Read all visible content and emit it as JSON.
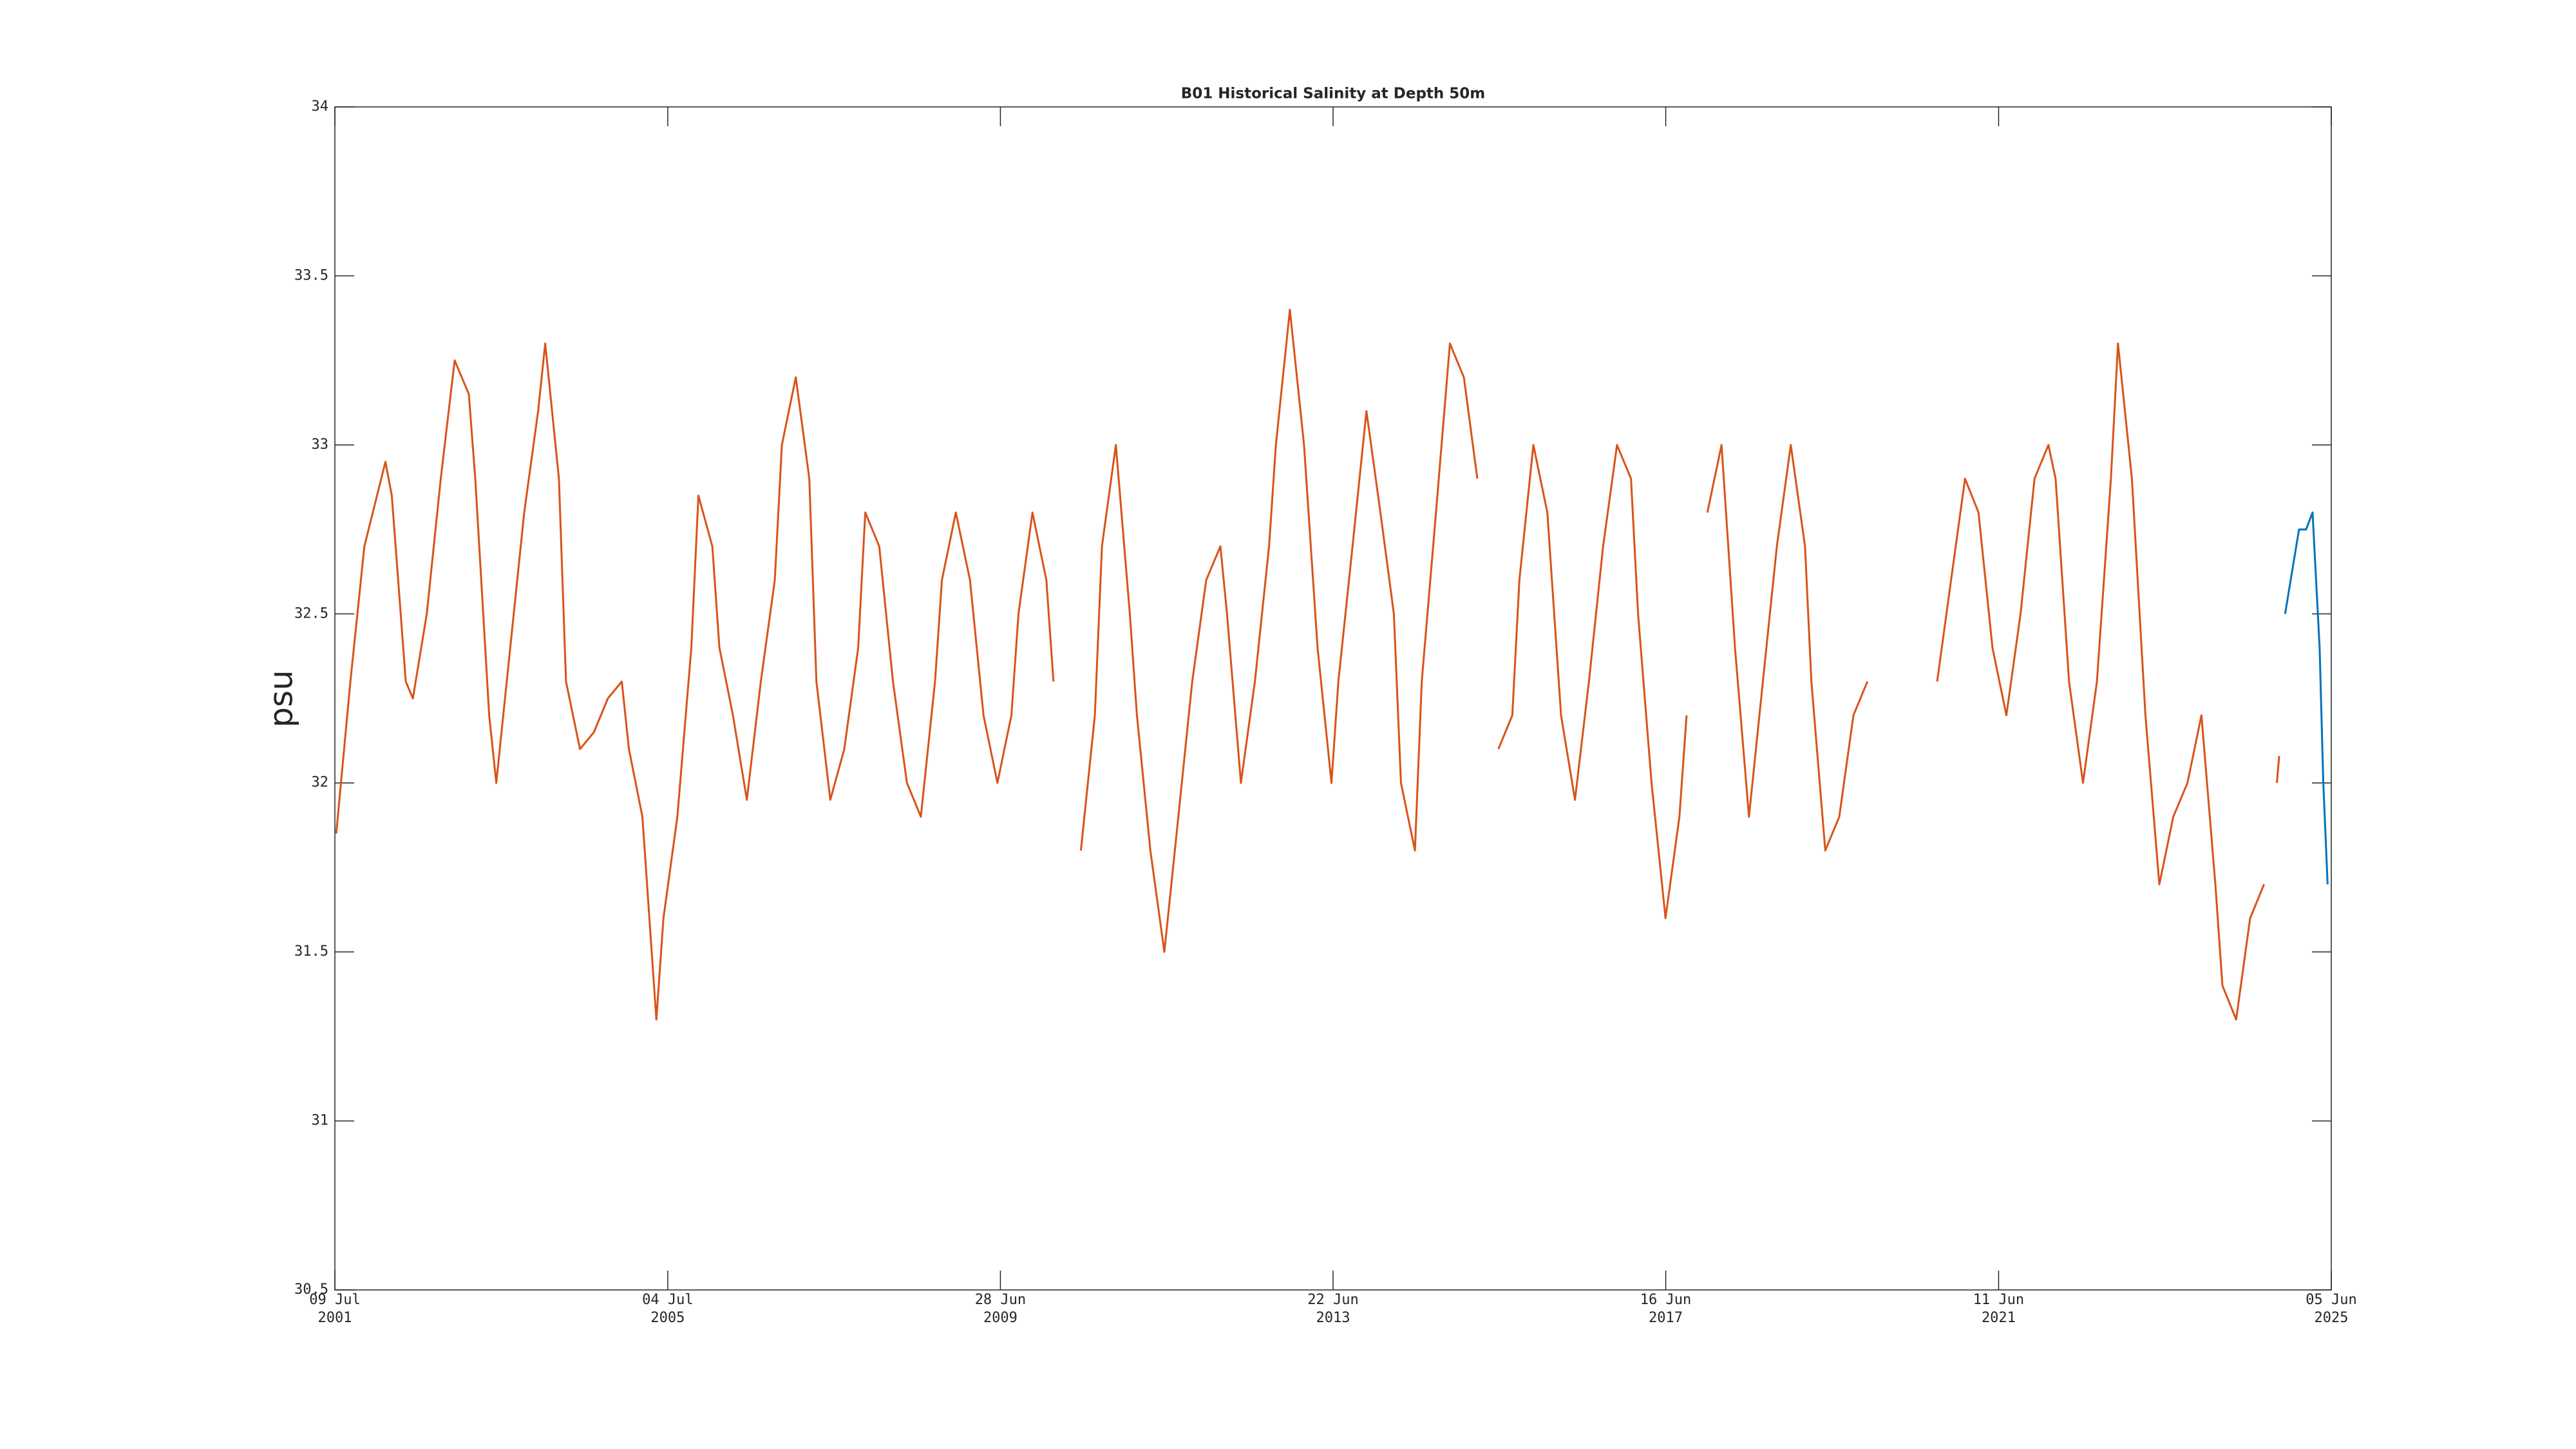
{
  "chart_data": {
    "type": "line",
    "title": "B01 Historical Salinity at Depth 50m",
    "y_label": "psu",
    "xlim": [
      "2001-07-09",
      "2025-06-05"
    ],
    "xticks": [
      {
        "value": "2001-07-09",
        "label": "09 Jul\n2001"
      },
      {
        "value": "2005-07-04",
        "label": "04 Jul\n2005"
      },
      {
        "value": "2009-06-28",
        "label": "28 Jun\n2009"
      },
      {
        "value": "2013-06-22",
        "label": "22 Jun\n2013"
      },
      {
        "value": "2017-06-16",
        "label": "16 Jun\n2017"
      },
      {
        "value": "2021-06-11",
        "label": "11 Jun\n2021"
      },
      {
        "value": "2025-06-05",
        "label": "05 Jun\n2025"
      }
    ],
    "ylim": [
      30.5,
      34
    ],
    "yticks": [
      30.5,
      31,
      31.5,
      32,
      32.5,
      33,
      33.5,
      34
    ],
    "grid": false,
    "series": [
      {
        "color": "#d95319",
        "x": [
          "2001-07-15",
          "2001-09-15",
          "2001-11-15",
          "2002-02-15",
          "2002-03-15",
          "2002-05-15",
          "2002-06-15",
          "2002-08-15",
          "2002-10-15",
          "2002-12-15",
          "2003-02-15",
          "2003-03-15",
          "2003-05-15",
          "2003-06-15",
          "2003-08-15",
          "2003-10-15",
          "2003-12-15",
          "2004-01-15",
          "2004-03-15",
          "2004-04-15",
          "2004-06-15",
          "2004-08-15",
          "2004-10-15",
          "2004-12-15",
          "2005-01-15",
          "2005-03-15",
          "2005-05-15",
          "2005-06-15",
          "2005-08-15",
          "2005-10-15",
          "2005-11-15",
          "2006-01-15",
          "2006-02-15",
          "2006-04-15",
          "2006-06-15",
          "2006-08-15",
          "2006-10-15",
          "2006-11-15",
          "2007-01-15",
          "2007-03-15",
          "2007-04-15",
          "2007-06-15",
          "2007-08-15",
          "2007-10-15",
          "2007-11-15",
          "2008-01-15",
          "2008-03-15",
          "2008-05-15",
          "2008-07-15",
          "2008-09-15",
          "2008-10-15",
          "2008-12-15",
          "2009-02-15",
          "2009-04-15",
          "2009-06-15",
          "2009-08-15",
          "2009-09-15",
          "2009-11-15",
          "2010-01-15",
          "2010-02-15",
          "2010-04-15",
          "2010-06-15",
          "2010-08-15",
          "2010-09-15",
          "2010-11-15",
          "2011-01-15",
          "2011-02-15",
          "2011-04-15",
          "2011-06-15",
          "2011-08-15",
          "2011-10-15",
          "2011-12-15",
          "2012-02-15",
          "2012-03-15",
          "2012-05-15",
          "2012-07-15",
          "2012-09-15",
          "2012-10-15",
          "2012-12-15",
          "2013-02-15",
          "2013-04-15",
          "2013-06-15",
          "2013-07-15",
          "2013-09-15",
          "2013-11-15",
          "2014-01-15",
          "2014-03-15",
          "2014-04-15",
          "2014-06-15",
          "2014-07-15",
          "2014-09-15",
          "2014-11-15",
          "2015-01-15",
          "2015-03-15",
          "2015-04-15",
          "2015-06-15",
          "2015-08-15",
          "2015-09-15",
          "2015-11-15",
          "2016-01-15",
          "2016-03-15",
          "2016-05-15",
          "2016-07-15",
          "2016-09-15",
          "2016-11-15",
          "2017-01-15",
          "2017-02-15",
          "2017-04-15",
          "2017-06-15",
          "2017-08-15",
          "2017-09-15",
          "2017-11-01",
          "2017-12-15",
          "2018-02-15",
          "2018-04-15",
          "2018-06-15",
          "2018-08-15",
          "2018-10-15",
          "2018-12-15",
          "2019-02-15",
          "2019-03-15",
          "2019-05-15",
          "2019-07-15",
          "2019-09-15",
          "2019-11-15",
          "2020-03-15",
          "2020-09-15",
          "2020-11-15",
          "2021-01-15",
          "2021-03-15",
          "2021-05-15",
          "2021-07-15",
          "2021-09-15",
          "2021-11-15",
          "2022-01-15",
          "2022-02-15",
          "2022-04-15",
          "2022-06-15",
          "2022-08-15",
          "2022-10-15",
          "2022-11-15",
          "2023-01-15",
          "2023-03-15",
          "2023-05-15",
          "2023-07-15",
          "2023-09-15",
          "2023-11-15",
          "2024-01-15",
          "2024-02-15",
          "2024-04-15",
          "2024-06-15",
          "2024-08-15",
          "2024-09-15",
          "2024-10-10",
          "2024-10-20"
        ],
        "values": [
          31.85,
          32.3,
          32.7,
          32.95,
          32.85,
          32.3,
          32.25,
          32.5,
          32.9,
          33.25,
          33.15,
          32.9,
          32.2,
          32.0,
          32.4,
          32.8,
          33.1,
          33.3,
          32.9,
          32.3,
          32.1,
          32.15,
          32.25,
          32.3,
          32.1,
          31.9,
          31.3,
          31.6,
          31.9,
          32.4,
          32.85,
          32.7,
          32.4,
          32.2,
          31.95,
          32.3,
          32.6,
          33.0,
          33.2,
          32.9,
          32.3,
          31.95,
          32.1,
          32.4,
          32.8,
          32.7,
          32.3,
          32.0,
          31.9,
          32.3,
          32.6,
          32.8,
          32.6,
          32.2,
          32.0,
          32.2,
          32.5,
          32.8,
          32.6,
          32.3,
          null,
          31.8,
          32.2,
          32.7,
          33.0,
          32.5,
          32.2,
          31.8,
          31.5,
          31.9,
          32.3,
          32.6,
          32.7,
          32.5,
          32.0,
          32.3,
          32.7,
          33.0,
          33.4,
          33.0,
          32.4,
          32.0,
          32.3,
          32.7,
          33.1,
          32.8,
          32.5,
          32.0,
          31.8,
          32.3,
          32.8,
          33.3,
          33.2,
          32.9,
          null,
          32.1,
          32.2,
          32.6,
          33.0,
          32.8,
          32.2,
          31.95,
          32.3,
          32.7,
          33.0,
          32.9,
          32.5,
          32.0,
          31.6,
          31.9,
          32.2,
          null,
          32.8,
          33.0,
          32.4,
          31.9,
          32.3,
          32.7,
          33.0,
          32.7,
          32.3,
          31.8,
          31.9,
          32.2,
          32.3,
          null,
          32.3,
          32.6,
          32.9,
          32.8,
          32.4,
          32.2,
          32.5,
          32.9,
          33.0,
          32.9,
          32.3,
          32.0,
          32.3,
          32.9,
          33.3,
          32.9,
          32.2,
          31.7,
          31.9,
          32.0,
          32.2,
          31.7,
          31.4,
          31.3,
          31.6,
          31.7,
          null,
          32.0,
          32.08
        ]
      },
      {
        "color": "#0072bd",
        "x": [
          "2024-11-15",
          "2025-01-15",
          "2025-02-15",
          "2025-03-15",
          "2025-04-15",
          "2025-05-01",
          "2025-05-20"
        ],
        "values": [
          32.5,
          32.75,
          32.75,
          32.8,
          32.4,
          32.0,
          31.7
        ]
      }
    ]
  }
}
